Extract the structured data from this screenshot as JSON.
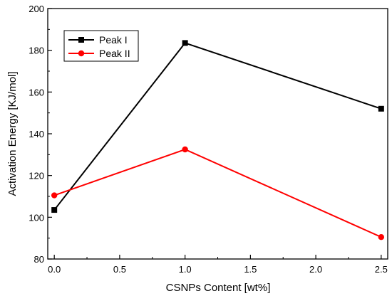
{
  "chart_data": {
    "type": "line",
    "title": "",
    "xlabel": "CSNPs Content [wt%]",
    "ylabel": "Activation Energy [KJ/mol]",
    "xlim": [
      -0.05,
      2.55
    ],
    "ylim": [
      80,
      200
    ],
    "xticks": [
      0.0,
      0.5,
      1.0,
      1.5,
      2.0,
      2.5
    ],
    "xtick_labels": [
      "0.0",
      "0.5",
      "1.0",
      "1.5",
      "2.0",
      "2.5"
    ],
    "yticks": [
      80,
      100,
      120,
      140,
      160,
      180,
      200
    ],
    "ytick_labels": [
      "80",
      "100",
      "120",
      "140",
      "160",
      "180",
      "200"
    ],
    "grid": false,
    "legend_position": "top-left",
    "x": [
      0.0,
      1.0,
      2.5
    ],
    "series": [
      {
        "name": "Peak I",
        "values": [
          103.5,
          183.5,
          152.0
        ],
        "color": "#000000",
        "marker": "square"
      },
      {
        "name": "Peak II",
        "values": [
          110.5,
          132.5,
          90.5
        ],
        "color": "#ff0000",
        "marker": "circle"
      }
    ]
  }
}
